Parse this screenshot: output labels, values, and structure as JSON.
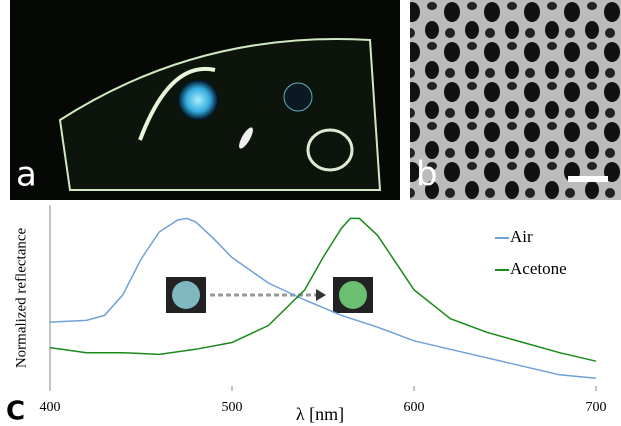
{
  "panel_labels": {
    "a": "a",
    "b": "b"
  },
  "chart_data": {
    "type": "line",
    "panel_label": "C",
    "x_label": "λ [nm]",
    "y_label": "Normalized reflectance",
    "xlim": [
      400,
      700
    ],
    "xticks": [
      400,
      500,
      600,
      700
    ],
    "ylim": [
      0,
      1
    ],
    "legend_position": "upper right",
    "series": [
      {
        "name": "Air",
        "color": "#6fa0d8",
        "x": [
          400,
          420,
          430,
          440,
          450,
          460,
          470,
          475,
          480,
          490,
          500,
          520,
          540,
          560,
          580,
          600,
          620,
          640,
          660,
          680,
          700
        ],
        "values": [
          0.37,
          0.38,
          0.41,
          0.53,
          0.74,
          0.9,
          0.97,
          0.98,
          0.96,
          0.86,
          0.75,
          0.6,
          0.5,
          0.41,
          0.34,
          0.26,
          0.21,
          0.16,
          0.11,
          0.06,
          0.04
        ]
      },
      {
        "name": "Acetone",
        "color": "#1a8a1a",
        "x": [
          400,
          420,
          440,
          460,
          480,
          500,
          520,
          540,
          550,
          560,
          565,
          570,
          580,
          590,
          600,
          620,
          640,
          660,
          680,
          700
        ],
        "values": [
          0.22,
          0.19,
          0.19,
          0.18,
          0.21,
          0.25,
          0.35,
          0.56,
          0.75,
          0.92,
          0.98,
          0.98,
          0.88,
          0.72,
          0.56,
          0.39,
          0.31,
          0.25,
          0.19,
          0.14
        ]
      }
    ]
  }
}
